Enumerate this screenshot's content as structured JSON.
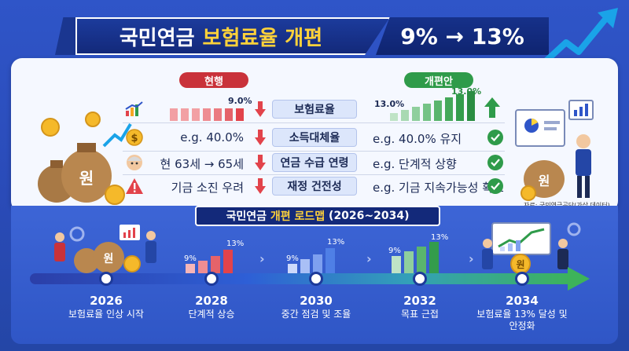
{
  "header": {
    "title_main": "국민연금",
    "title_accent": "보험료율 개편",
    "rate_change": "9% → 13%"
  },
  "labels": {
    "current": "현행",
    "reform": "개편안"
  },
  "chart_current": {
    "value_label": "9.0%"
  },
  "chart_reform": {
    "start_label": "13.0%",
    "end_label": "13.0%"
  },
  "rows": [
    {
      "icon": "bar-chart-icon",
      "left": "",
      "center": "보험료율",
      "right": ""
    },
    {
      "icon": "dollar-coin-icon",
      "left": "e.g. 40.0%",
      "center": "소득대체율",
      "right": "e.g. 40.0% 유지"
    },
    {
      "icon": "elderly-person-icon",
      "left": "현 63세 → 65세",
      "center": "연금 수급 연령",
      "right": "e.g. 단계적 상향"
    },
    {
      "icon": "warning-icon",
      "left": "기금 소진 우려",
      "center": "재정 건전성",
      "right": "e.g. 기금 지속가능성 확보"
    }
  ],
  "source": "자료: 국민연금공단(가상 데이터)",
  "roadmap": {
    "title_main": "국민연금",
    "title_accent": "개편 로드맵",
    "title_range": "(2026~2034)",
    "milestones": [
      {
        "year": "2026",
        "desc": "보험료율 인상 시작",
        "chart_low": "",
        "chart_high": ""
      },
      {
        "year": "2028",
        "desc": "단계적 상승",
        "chart_low": "9%",
        "chart_high": "13%"
      },
      {
        "year": "2030",
        "desc": "중간 점검 및 조율",
        "chart_low": "9%",
        "chart_high": "13%"
      },
      {
        "year": "2032",
        "desc": "목표 근접",
        "chart_low": "9%",
        "chart_high": "13%"
      },
      {
        "year": "2034",
        "desc": "보험료율 13% 달성 및 안정화",
        "chart_low": "",
        "chart_high": ""
      }
    ]
  },
  "coin_label": "원",
  "colors": {
    "red": "#e2434b",
    "green": "#2f9b4a",
    "navy": "#13297a",
    "gold": "#ffd23a"
  }
}
